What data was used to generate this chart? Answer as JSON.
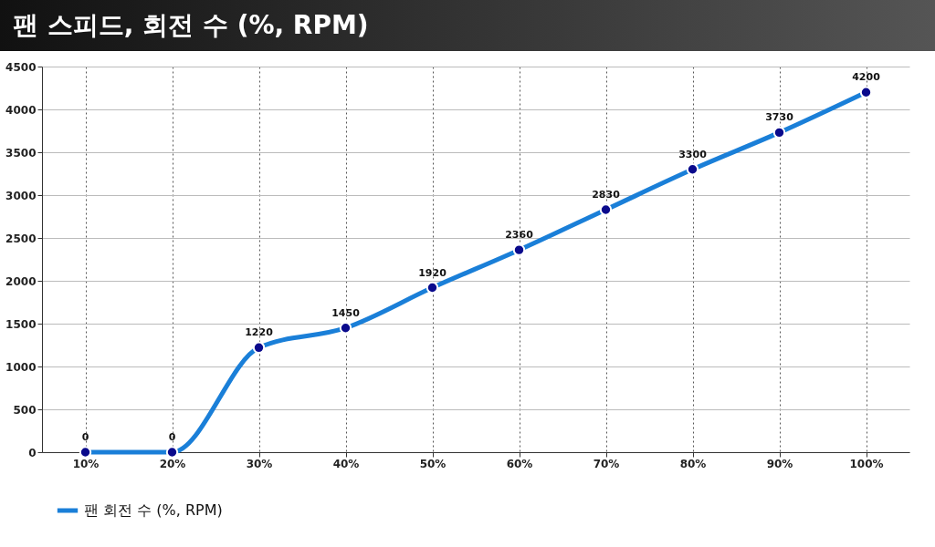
{
  "chart_data": {
    "type": "line",
    "title": "팬 스피드, 회전 수 (%, RPM)",
    "categories": [
      "10%",
      "20%",
      "30%",
      "40%",
      "50%",
      "60%",
      "70%",
      "80%",
      "90%",
      "100%"
    ],
    "series": [
      {
        "name": "팬 회전 수 (%, RPM)",
        "color": "#1a7fd8",
        "values": [
          0,
          0,
          1220,
          1450,
          1920,
          2360,
          2830,
          3300,
          3730,
          4200
        ]
      }
    ],
    "ylim": [
      0,
      4500
    ],
    "yticks": [
      0,
      500,
      1000,
      1500,
      2000,
      2500,
      3000,
      3500,
      4000,
      4500
    ],
    "grid": true,
    "legend": "bottom",
    "marker": "circle",
    "line_style": "solid",
    "data_labels": true
  }
}
